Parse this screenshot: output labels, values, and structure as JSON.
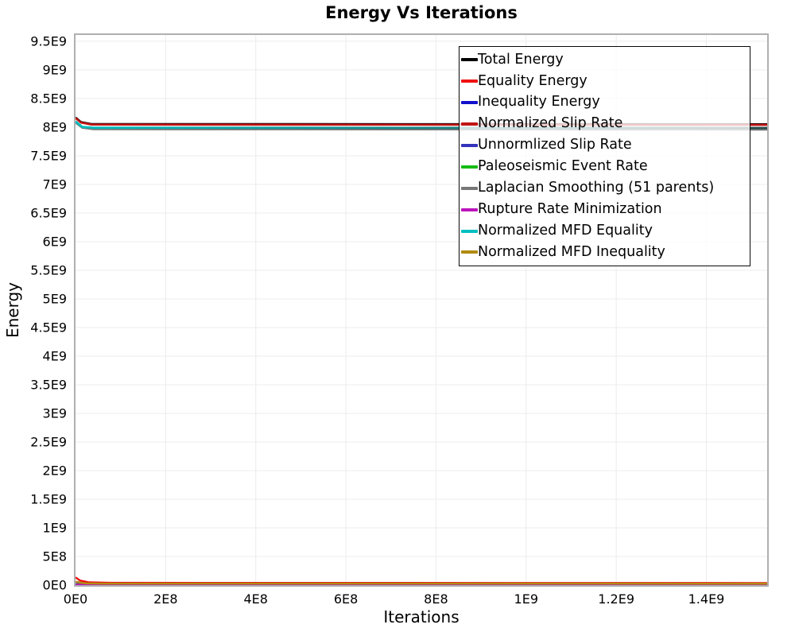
{
  "title": "Energy Vs Iterations",
  "axes": {
    "x_label": "Iterations",
    "y_label": "Energy"
  },
  "chart_data": {
    "type": "line",
    "title": "Energy Vs Iterations",
    "xlabel": "Iterations",
    "ylabel": "Energy",
    "xlim": [
      0,
      1535000000.0
    ],
    "ylim": [
      0,
      9610000000.0
    ],
    "grid": true,
    "grid_color": "#ececec",
    "legend_position": "top-right",
    "x_ticks": [
      "0E0",
      "2E8",
      "4E8",
      "6E8",
      "8E8",
      "1E9",
      "1.2E9",
      "1.4E9"
    ],
    "x_tick_values": [
      0,
      200000000.0,
      400000000.0,
      600000000.0,
      800000000.0,
      1000000000.0,
      1200000000.0,
      1400000000.0
    ],
    "y_ticks": [
      "0E0",
      "5E8",
      "1E9",
      "1.5E9",
      "2E9",
      "2.5E9",
      "3E9",
      "3.5E9",
      "4E9",
      "4.5E9",
      "5E9",
      "5.5E9",
      "6E9",
      "6.5E9",
      "7E9",
      "7.5E9",
      "8E9",
      "8.5E9",
      "9E9",
      "9.5E9"
    ],
    "y_tick_values": [
      0,
      500000000.0,
      1000000000.0,
      1500000000.0,
      2000000000.0,
      2500000000.0,
      3000000000.0,
      3500000000.0,
      4000000000.0,
      4500000000.0,
      5000000000.0,
      5500000000.0,
      6000000000.0,
      6500000000.0,
      7000000000.0,
      7500000000.0,
      8000000000.0,
      8500000000.0,
      9000000000.0,
      9500000000.0
    ],
    "series": [
      {
        "name": "Total Energy",
        "color": "#000000",
        "width": 2.6,
        "points": [
          [
            0,
            8170000000.0
          ],
          [
            12000000.0,
            8090000000.0
          ],
          [
            35000000.0,
            8055000000.0
          ],
          [
            1535000000.0,
            8050000000.0
          ]
        ]
      },
      {
        "name": "Equality Energy",
        "color": "#ee1111",
        "width": 2.4,
        "points": [
          [
            0,
            135000000.0
          ],
          [
            10000000.0,
            80000000.0
          ],
          [
            30000000.0,
            48000000.0
          ],
          [
            80000000.0,
            40000000.0
          ],
          [
            1535000000.0,
            36000000.0
          ]
        ]
      },
      {
        "name": "Inequality Energy",
        "color": "#1111cc",
        "width": 2.2,
        "points": [
          [
            0,
            16000000.0
          ],
          [
            1535000000.0,
            10000000.0
          ]
        ]
      },
      {
        "name": "Normalized Slip Rate",
        "color": "#c01414",
        "width": 2.6,
        "points": [
          [
            0,
            8160000000.0
          ],
          [
            12000000.0,
            8080000000.0
          ],
          [
            35000000.0,
            8045000000.0
          ],
          [
            1535000000.0,
            8040000000.0
          ]
        ]
      },
      {
        "name": "Unnormlized Slip Rate",
        "color": "#3333bb",
        "width": 2.2,
        "points": [
          [
            0,
            20000000.0
          ],
          [
            1535000000.0,
            13000000.0
          ]
        ]
      },
      {
        "name": "Paleoseismic Event Rate",
        "color": "#15bb15",
        "width": 2.2,
        "points": [
          [
            0,
            12000000.0
          ],
          [
            1535000000.0,
            8000000.0
          ]
        ]
      },
      {
        "name": "Laplacian Smoothing (51 parents)",
        "color": "#777777",
        "width": 2.4,
        "points": [
          [
            0,
            8080000000.0
          ],
          [
            15000000.0,
            7990000000.0
          ],
          [
            40000000.0,
            7963000000.0
          ],
          [
            1535000000.0,
            7958000000.0
          ]
        ]
      },
      {
        "name": "Rupture Rate Minimization",
        "color": "#bb15bb",
        "width": 2.2,
        "points": [
          [
            0,
            9000000.0
          ],
          [
            1535000000.0,
            6000000.0
          ]
        ]
      },
      {
        "name": "Normalized MFD Equality",
        "color": "#00bfbf",
        "color_end": "#254a4a",
        "width": 2.8,
        "points": [
          [
            0,
            8100000000.0
          ],
          [
            15000000.0,
            8005000000.0
          ],
          [
            40000000.0,
            7990000000.0
          ],
          [
            1535000000.0,
            7985000000.0
          ]
        ]
      },
      {
        "name": "Normalized MFD Inequality",
        "color": "#b08b10",
        "width": 2.5,
        "points": [
          [
            0,
            60000000.0
          ],
          [
            20000000.0,
            30000000.0
          ],
          [
            60000000.0,
            26000000.0
          ],
          [
            1535000000.0,
            25000000.0
          ]
        ]
      }
    ]
  }
}
